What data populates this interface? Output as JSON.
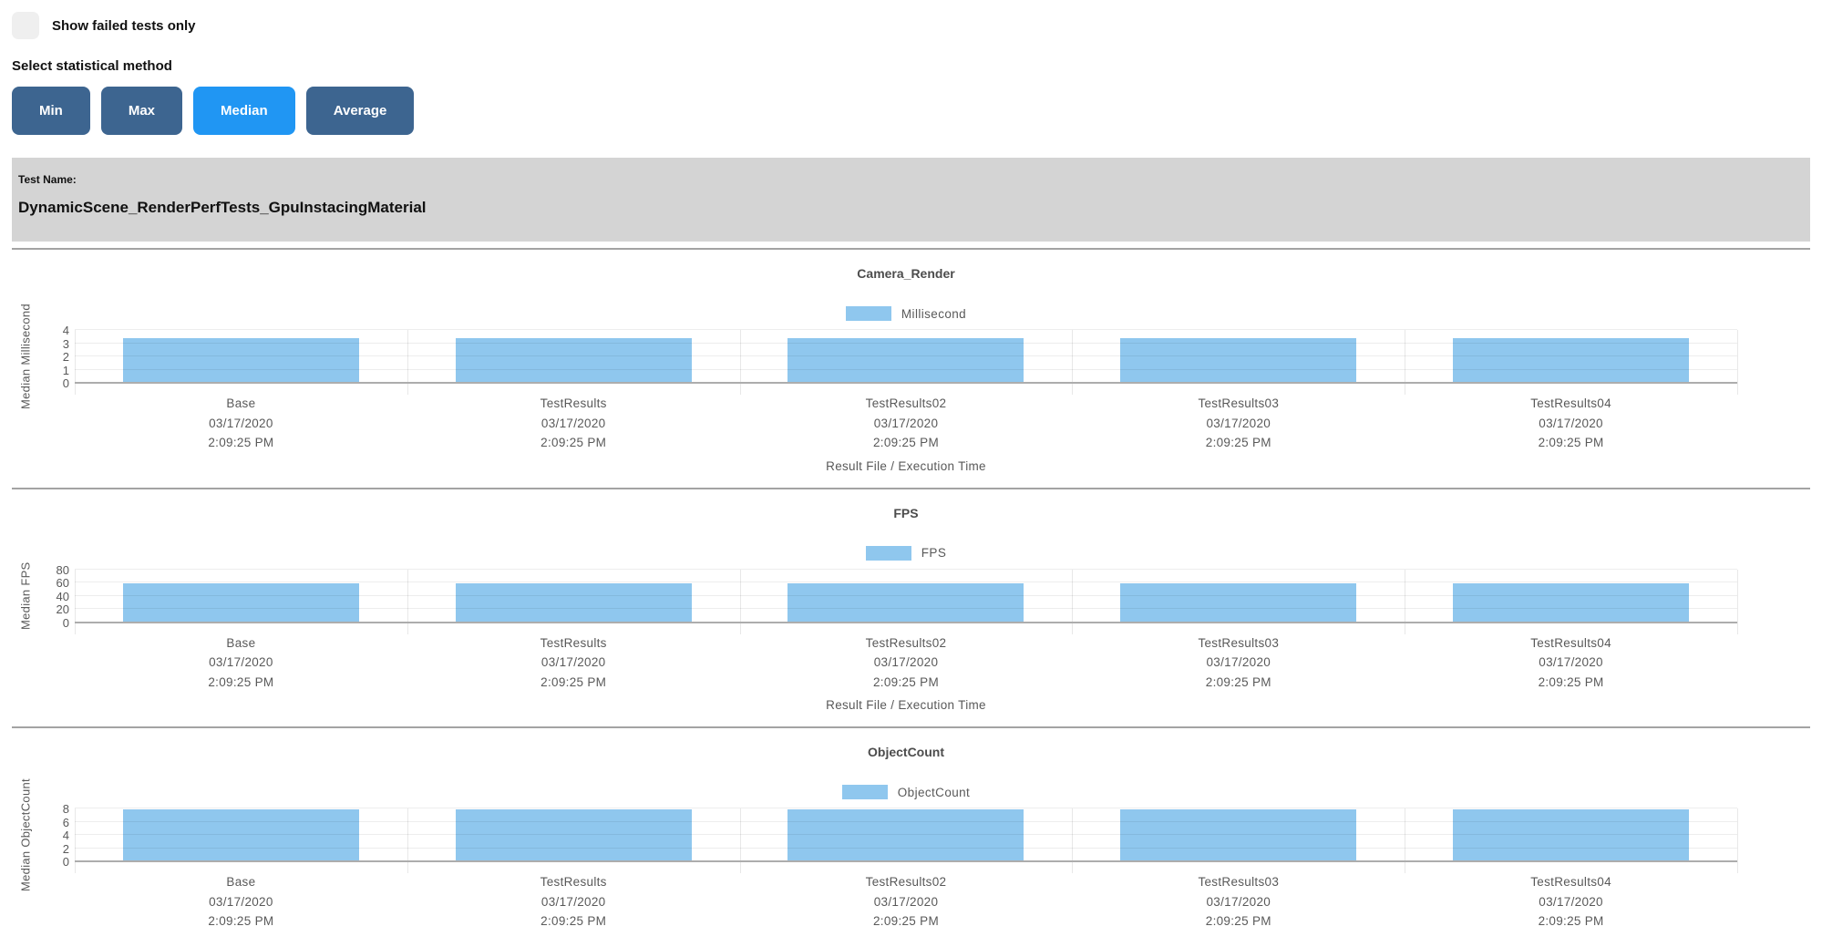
{
  "page": {
    "show_failed_label": "Show failed tests only",
    "stat_method_label": "Select statistical method"
  },
  "stat_buttons": [
    {
      "label": "Min",
      "active": false
    },
    {
      "label": "Max",
      "active": false
    },
    {
      "label": "Median",
      "active": true
    },
    {
      "label": "Average",
      "active": false
    }
  ],
  "test_banner": {
    "label": "Test Name:",
    "name": "DynamicScene_RenderPerfTests_GpuInstacingMaterial"
  },
  "colors": {
    "bar_fill": "#8fc7ee",
    "button_default": "#3d6590",
    "button_active": "#2096f3",
    "banner_bg": "#d4d4d4"
  },
  "chart_data": [
    {
      "type": "bar",
      "title": "Camera_Render",
      "legend": "Millisecond",
      "ylabel": "Median Millisecond",
      "xlabel": "Result File / Execution Time",
      "ylim": [
        0,
        4
      ],
      "yticks": [
        0,
        1,
        2,
        3,
        4
      ],
      "grid": true,
      "legend_position": "top",
      "categories": [
        {
          "name": "Base",
          "date": "03/17/2020",
          "time": "2:09:25 PM"
        },
        {
          "name": "TestResults",
          "date": "03/17/2020",
          "time": "2:09:25 PM"
        },
        {
          "name": "TestResults02",
          "date": "03/17/2020",
          "time": "2:09:25 PM"
        },
        {
          "name": "TestResults03",
          "date": "03/17/2020",
          "time": "2:09:25 PM"
        },
        {
          "name": "TestResults04",
          "date": "03/17/2020",
          "time": "2:09:25 PM"
        }
      ],
      "values": [
        3.4,
        3.4,
        3.4,
        3.4,
        3.4
      ]
    },
    {
      "type": "bar",
      "title": "FPS",
      "legend": "FPS",
      "ylabel": "Median FPS",
      "xlabel": "Result File / Execution Time",
      "ylim": [
        0,
        80
      ],
      "yticks": [
        0,
        20,
        40,
        60,
        80
      ],
      "grid": true,
      "legend_position": "top",
      "categories": [
        {
          "name": "Base",
          "date": "03/17/2020",
          "time": "2:09:25 PM"
        },
        {
          "name": "TestResults",
          "date": "03/17/2020",
          "time": "2:09:25 PM"
        },
        {
          "name": "TestResults02",
          "date": "03/17/2020",
          "time": "2:09:25 PM"
        },
        {
          "name": "TestResults03",
          "date": "03/17/2020",
          "time": "2:09:25 PM"
        },
        {
          "name": "TestResults04",
          "date": "03/17/2020",
          "time": "2:09:25 PM"
        }
      ],
      "values": [
        58.5,
        58.5,
        58.5,
        58.5,
        58.5
      ]
    },
    {
      "type": "bar",
      "title": "ObjectCount",
      "legend": "ObjectCount",
      "ylabel": "Median ObjectCount",
      "ylim": [
        0,
        8
      ],
      "yticks": [
        0,
        2,
        4,
        6,
        8
      ],
      "grid": true,
      "legend_position": "top",
      "categories": [
        {
          "name": "Base",
          "date": "03/17/2020",
          "time": "2:09:25 PM"
        },
        {
          "name": "TestResults",
          "date": "03/17/2020",
          "time": "2:09:25 PM"
        },
        {
          "name": "TestResults02",
          "date": "03/17/2020",
          "time": "2:09:25 PM"
        },
        {
          "name": "TestResults03",
          "date": "03/17/2020",
          "time": "2:09:25 PM"
        },
        {
          "name": "TestResults04",
          "date": "03/17/2020",
          "time": "2:09:25 PM"
        }
      ],
      "values": [
        7.8,
        7.8,
        7.8,
        7.8,
        7.8
      ]
    }
  ]
}
